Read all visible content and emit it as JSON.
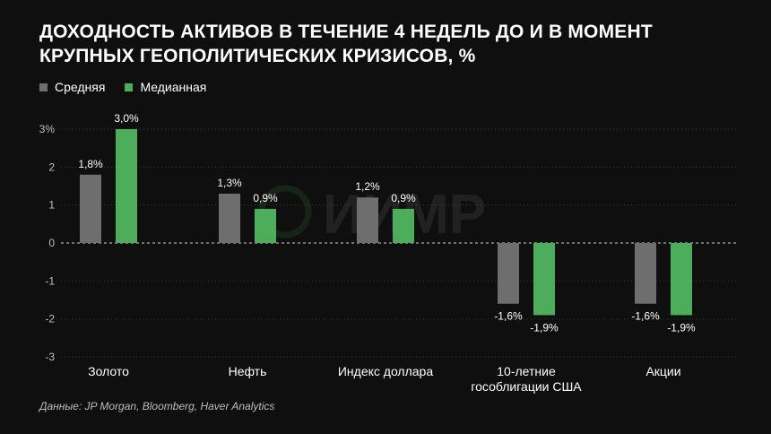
{
  "title": "ДОХОДНОСТЬ АКТИВОВ В ТЕЧЕНИЕ 4 НЕДЕЛЬ ДО И В МОМЕНТ КРУПНЫХ ГЕОПОЛИТИЧЕСКИХ КРИЗИСОВ, %",
  "legend": [
    {
      "label": "Средняя",
      "color": "#6e6e6e"
    },
    {
      "label": "Медианная",
      "color": "#4cae5a"
    }
  ],
  "watermark": "ИИМР",
  "source": "Данные: JP Morgan, Bloomberg, Haver Analytics",
  "chart_data": {
    "type": "bar",
    "categories": [
      [
        "Золото"
      ],
      [
        "Нефть"
      ],
      [
        "Индекс доллара"
      ],
      [
        "10-летние",
        "гособлигации США"
      ],
      [
        "Акции"
      ]
    ],
    "series": [
      {
        "name": "Средняя",
        "color": "#6e6e6e",
        "values": [
          1.8,
          1.3,
          1.2,
          -1.6,
          -1.6
        ],
        "labels": [
          "1,8%",
          "1,3%",
          "1,2%",
          "-1,6%",
          "-1,6%"
        ]
      },
      {
        "name": "Медианная",
        "color": "#4cae5a",
        "values": [
          3.0,
          0.9,
          0.9,
          -1.9,
          -1.9
        ],
        "labels": [
          "3,0%",
          "0,9%",
          "0,9%",
          "-1,9%",
          "-1,9%"
        ]
      }
    ],
    "ylim": [
      -3,
      3
    ],
    "yticks": [
      3,
      2,
      1,
      0,
      -1,
      -2,
      -3
    ],
    "ytick_labels": [
      "3%",
      "2",
      "1",
      "0",
      "-1",
      "-2",
      "-3"
    ],
    "grid": "dotted horizontal lines",
    "legend_position": "top-left"
  }
}
